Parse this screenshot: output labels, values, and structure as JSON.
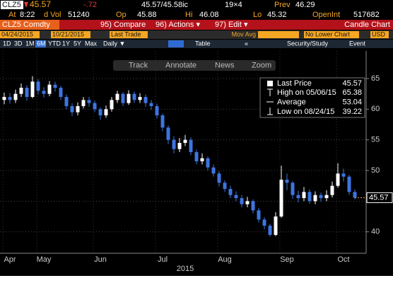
{
  "quote": {
    "ticker": "CLZ5",
    "last": "45.57",
    "change": "-.72",
    "bid_ask": "45.57/45.58ic",
    "size": "19×4",
    "prev_label": "Prev",
    "prev": "46.29",
    "time_label": "At",
    "time": "8:22",
    "vol_label": "d Vol",
    "vol": "51240",
    "open_label": "Op",
    "open": "45.88",
    "hi_label": "Hi",
    "hi": "46.08",
    "lo_label": "Lo",
    "lo": "45.32",
    "oi_label": "OpenInt",
    "oi": "517682"
  },
  "menu": {
    "security": "CLZ5 Comdty",
    "compare": "95) Compare",
    "actions": "96) Actions ▾",
    "edit": "97) Edit ▾",
    "view": "Candle Chart"
  },
  "controls": {
    "start": "04/24/2015",
    "end": "10/21/2015",
    "field": "Last Trade",
    "study": "Mov Avg",
    "lower": "No Lower Chart",
    "currency": "USD"
  },
  "periods": [
    "1D",
    "3D",
    "1M",
    "6M",
    "YTD",
    "1Y",
    "5Y",
    "Max"
  ],
  "frequency": "Daily ▼",
  "table": "Table",
  "back": "«",
  "security_study": "Security/Study",
  "event": "Event",
  "tools": [
    "Track",
    "Annotate",
    "News",
    "Zoom"
  ],
  "chart_data": {
    "type": "candlestick",
    "xlabel": "2015",
    "up_color": "#ffffff",
    "down_color": "#3d74e0",
    "grid": true,
    "categories": [
      null,
      "Apr",
      null,
      null,
      null,
      null,
      null,
      "May",
      null,
      null,
      null,
      null,
      null,
      null,
      null,
      null,
      null,
      "Jun",
      null,
      null,
      null,
      null,
      null,
      null,
      null,
      null,
      null,
      null,
      "Jul",
      null,
      null,
      null,
      null,
      null,
      null,
      null,
      null,
      null,
      null,
      "Aug",
      null,
      null,
      null,
      null,
      null,
      null,
      null,
      null,
      null,
      null,
      "Sep",
      null,
      null,
      null,
      null,
      null,
      null,
      null,
      null,
      null,
      "Oct",
      null,
      null
    ],
    "open": [
      61.5,
      62.0,
      61.5,
      62.5,
      63.5,
      62.0,
      64.5,
      63.0,
      62.5,
      64.0,
      63.5,
      62.0,
      60.5,
      59.5,
      60.5,
      61.5,
      61.0,
      60.0,
      59.0,
      60.0,
      61.5,
      62.5,
      61.0,
      62.5,
      61.5,
      62.0,
      61.0,
      60.5,
      59.0,
      57.0,
      55.0,
      53.5,
      54.5,
      55.0,
      53.0,
      51.5,
      52.0,
      50.5,
      49.5,
      48.0,
      47.0,
      46.0,
      45.5,
      44.5,
      45.0,
      43.5,
      42.0,
      41.0,
      39.5,
      42.5,
      48.5,
      48.0,
      46.0,
      45.5,
      46.5,
      45.0,
      46.0,
      45.5,
      46.0,
      47.5,
      49.5,
      49.0,
      46.5
    ],
    "high": [
      62.7,
      62.6,
      63.2,
      64.2,
      63.9,
      65.38,
      64.9,
      63.6,
      64.6,
      64.5,
      63.8,
      62.4,
      61.0,
      61.1,
      62.0,
      62.0,
      61.4,
      60.3,
      60.6,
      62.0,
      63.0,
      62.8,
      63.1,
      62.9,
      62.6,
      62.4,
      61.5,
      60.9,
      59.3,
      57.4,
      55.6,
      55.3,
      55.8,
      55.4,
      53.4,
      52.8,
      52.3,
      51.0,
      49.9,
      48.4,
      47.5,
      46.6,
      46.0,
      45.7,
      45.3,
      43.9,
      42.4,
      41.3,
      43.2,
      50.8,
      49.5,
      48.3,
      46.7,
      47.3,
      46.9,
      46.6,
      46.4,
      46.8,
      48.2,
      51.2,
      50.3,
      49.3,
      46.9
    ],
    "low": [
      60.8,
      60.9,
      61.0,
      62.0,
      61.4,
      61.8,
      62.4,
      61.9,
      62.1,
      62.9,
      61.5,
      60.0,
      58.9,
      59.0,
      60.1,
      60.4,
      59.5,
      58.3,
      58.6,
      59.6,
      61.0,
      60.5,
      60.7,
      61.0,
      61.0,
      60.4,
      59.9,
      58.5,
      56.4,
      54.3,
      52.8,
      53.0,
      54.0,
      52.5,
      51.0,
      51.0,
      50.0,
      49.0,
      47.4,
      46.5,
      45.5,
      45.0,
      44.0,
      44.0,
      43.0,
      41.5,
      40.4,
      39.22,
      39.3,
      42.3,
      46.8,
      45.4,
      44.8,
      45.0,
      44.6,
      44.5,
      44.9,
      45.0,
      45.6,
      47.2,
      48.2,
      46.0,
      45.3
    ],
    "close": [
      62.0,
      61.5,
      62.5,
      63.5,
      62.0,
      64.5,
      63.0,
      62.5,
      64.0,
      63.5,
      62.0,
      60.5,
      59.5,
      60.5,
      61.5,
      61.0,
      60.0,
      59.0,
      60.0,
      61.5,
      62.5,
      61.0,
      62.5,
      61.5,
      62.0,
      61.0,
      60.5,
      59.0,
      57.0,
      55.0,
      53.5,
      54.5,
      55.0,
      53.0,
      51.5,
      52.0,
      50.5,
      49.5,
      48.0,
      47.0,
      46.0,
      45.5,
      44.5,
      45.0,
      43.5,
      42.0,
      41.0,
      39.5,
      42.5,
      48.5,
      48.0,
      46.0,
      45.5,
      46.5,
      45.0,
      46.0,
      45.5,
      46.0,
      47.5,
      49.5,
      49.0,
      46.5,
      45.57
    ],
    "ylim": [
      36.5,
      69.5
    ],
    "yticks": [
      40,
      45,
      50,
      55,
      60,
      65
    ],
    "legend": [
      {
        "label": "Last Price",
        "value": 45.57
      },
      {
        "label": "High on 05/06/15",
        "value": 65.38
      },
      {
        "label": "Average",
        "value": 53.04
      },
      {
        "label": "Low on 08/24/15",
        "value": 39.22
      }
    ]
  }
}
